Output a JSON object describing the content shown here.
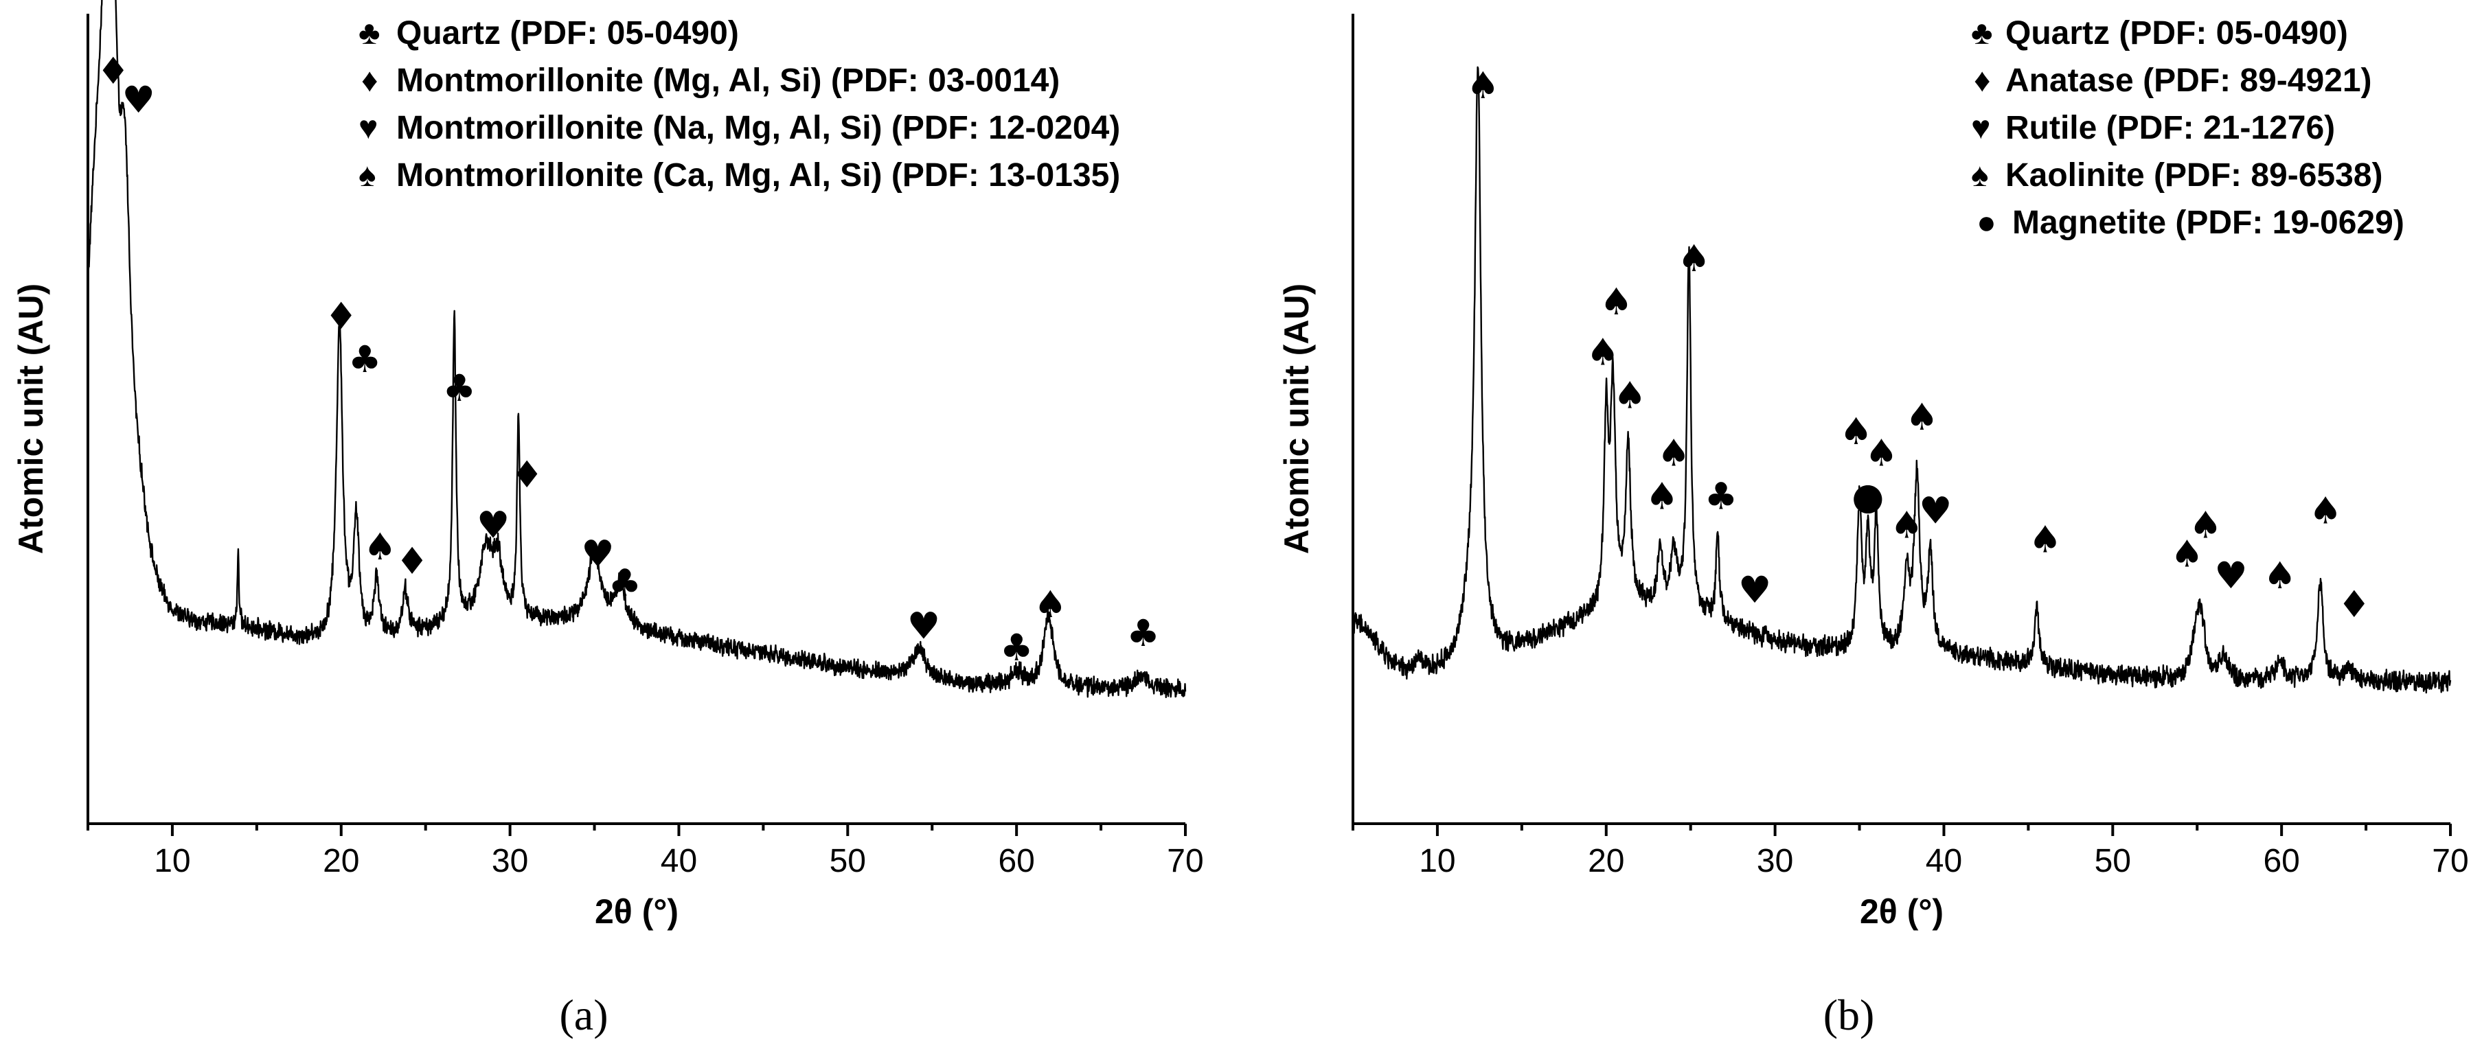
{
  "chart_data": [
    {
      "type": "line",
      "panel_label": "(a)",
      "xlabel": "2θ (°)",
      "ylabel": "Atomic unit (AU)",
      "xlim": [
        5,
        70
      ],
      "xticks": [
        10,
        20,
        30,
        40,
        50,
        60,
        70
      ],
      "y_ticks_shown": false,
      "legend_position": "top",
      "legend": [
        {
          "symbol": "♣",
          "name": "club",
          "label": "Quartz (PDF: 05-0490)"
        },
        {
          "symbol": "♦",
          "name": "diamond",
          "label": "Montmorillonite (Mg, Al, Si) (PDF: 03-0014)"
        },
        {
          "symbol": "♥",
          "name": "heart",
          "label": "Montmorillonite (Na, Mg, Al, Si) (PDF: 12-0204)"
        },
        {
          "symbol": "♠",
          "name": "spade",
          "label": "Montmorillonite (Ca, Mg, Al, Si) (PDF: 13-0135)"
        }
      ],
      "series": [
        {
          "baseline": 12,
          "peaks": [
            [
              6.3,
              85,
              0.45
            ],
            [
              5.5,
              55,
              1.0
            ],
            [
              7.2,
              40,
              0.4
            ],
            [
              8.0,
              10,
              0.8
            ],
            [
              13.9,
              10,
              0.06
            ],
            [
              19.9,
              44,
              0.22
            ],
            [
              20.9,
              16,
              0.2
            ],
            [
              22.1,
              8,
              0.2
            ],
            [
              23.8,
              6,
              0.2
            ],
            [
              26.7,
              42,
              0.12
            ],
            [
              28.6,
              10,
              0.5
            ],
            [
              29.3,
              7,
              0.3
            ],
            [
              30.5,
              28,
              0.1
            ],
            [
              35.0,
              10,
              0.45
            ],
            [
              36.5,
              6,
              0.4
            ],
            [
              54.2,
              4,
              0.5
            ],
            [
              60.0,
              2,
              0.4
            ],
            [
              61.9,
              10,
              0.35
            ],
            [
              67.5,
              2,
              0.4
            ]
          ],
          "broad": [
            [
              13.0,
              6,
              6
            ],
            [
              30.0,
              9,
              12
            ],
            [
              45.0,
              3,
              10
            ]
          ],
          "noise": 1.0,
          "ylim": [
            0,
            100
          ]
        }
      ],
      "markers": [
        {
          "s": "♦",
          "x": 6.5,
          "y": 96
        },
        {
          "s": "♥",
          "x": 8.0,
          "y": 92
        },
        {
          "s": "♦",
          "x": 20.0,
          "y": 62
        },
        {
          "s": "♣",
          "x": 21.4,
          "y": 56
        },
        {
          "s": "♣",
          "x": 27.0,
          "y": 52
        },
        {
          "s": "♦",
          "x": 31.0,
          "y": 40
        },
        {
          "s": "♥",
          "x": 29.0,
          "y": 33
        },
        {
          "s": "♠",
          "x": 22.3,
          "y": 30
        },
        {
          "s": "♦",
          "x": 24.2,
          "y": 28
        },
        {
          "s": "♥",
          "x": 35.2,
          "y": 29
        },
        {
          "s": "♣",
          "x": 36.8,
          "y": 25
        },
        {
          "s": "♥",
          "x": 54.5,
          "y": 19
        },
        {
          "s": "♣",
          "x": 60.0,
          "y": 16
        },
        {
          "s": "♠",
          "x": 62.0,
          "y": 22
        },
        {
          "s": "♣",
          "x": 67.5,
          "y": 18
        }
      ]
    },
    {
      "type": "line",
      "panel_label": "(b)",
      "xlabel": "2θ (°)",
      "ylabel": "Atomic unit (AU)",
      "xlim": [
        5,
        70
      ],
      "xticks": [
        10,
        20,
        30,
        40,
        50,
        60,
        70
      ],
      "y_ticks_shown": false,
      "legend_position": "top-right",
      "legend": [
        {
          "symbol": "♣",
          "name": "club",
          "label": "Quartz (PDF: 05-0490)"
        },
        {
          "symbol": "♦",
          "name": "diamond",
          "label": "Anatase (PDF: 89-4921)"
        },
        {
          "symbol": "♥",
          "name": "heart",
          "label": "Rutile (PDF: 21-1276)"
        },
        {
          "symbol": "♠",
          "name": "spade",
          "label": "Kaolinite (PDF: 89-6538)"
        },
        {
          "symbol": "●",
          "name": "dot",
          "label": "Magnetite (PDF: 19-0629)"
        }
      ],
      "series": [
        {
          "baseline": 13,
          "peaks": [
            [
              12.4,
              78,
              0.22
            ],
            [
              12.0,
              8,
              0.6
            ],
            [
              8.9,
              2,
              0.3
            ],
            [
              20.0,
              26,
              0.15
            ],
            [
              20.4,
              30,
              0.18
            ],
            [
              21.3,
              22,
              0.18
            ],
            [
              23.2,
              8,
              0.18
            ],
            [
              24.0,
              8,
              0.2
            ],
            [
              24.9,
              50,
              0.14
            ],
            [
              26.6,
              12,
              0.12
            ],
            [
              35.0,
              20,
              0.16
            ],
            [
              35.5,
              15,
              0.15
            ],
            [
              36.0,
              18,
              0.15
            ],
            [
              38.4,
              24,
              0.2
            ],
            [
              37.8,
              10,
              0.2
            ],
            [
              39.2,
              13,
              0.18
            ],
            [
              45.5,
              8,
              0.15
            ],
            [
              55.0,
              8,
              0.3
            ],
            [
              55.3,
              5,
              0.25
            ],
            [
              56.6,
              3,
              0.3
            ],
            [
              59.9,
              3,
              0.3
            ],
            [
              62.3,
              14,
              0.2
            ],
            [
              64.0,
              2,
              0.3
            ]
          ],
          "broad": [
            [
              5.0,
              8,
              2.0
            ],
            [
              22.0,
              10,
              8
            ],
            [
              38.0,
              4,
              10
            ]
          ],
          "noise": 1.1,
          "ylim": [
            0,
            100
          ]
        }
      ],
      "markers": [
        {
          "s": "♠",
          "x": 12.7,
          "y": 94
        },
        {
          "s": "♠",
          "x": 20.6,
          "y": 64
        },
        {
          "s": "♠",
          "x": 19.8,
          "y": 57
        },
        {
          "s": "♠",
          "x": 21.4,
          "y": 51
        },
        {
          "s": "♠",
          "x": 25.2,
          "y": 70
        },
        {
          "s": "♠",
          "x": 24.0,
          "y": 43
        },
        {
          "s": "♠",
          "x": 23.3,
          "y": 37
        },
        {
          "s": "♣",
          "x": 26.8,
          "y": 37
        },
        {
          "s": "♥",
          "x": 28.8,
          "y": 24
        },
        {
          "s": "♠",
          "x": 34.8,
          "y": 46
        },
        {
          "s": "♠",
          "x": 36.3,
          "y": 43
        },
        {
          "s": "♠",
          "x": 38.7,
          "y": 48
        },
        {
          "s": "●",
          "x": 35.5,
          "y": 37
        },
        {
          "s": "♠",
          "x": 37.8,
          "y": 33
        },
        {
          "s": "♥",
          "x": 39.5,
          "y": 35
        },
        {
          "s": "♠",
          "x": 46.0,
          "y": 31
        },
        {
          "s": "♠",
          "x": 54.4,
          "y": 29
        },
        {
          "s": "♠",
          "x": 55.5,
          "y": 33
        },
        {
          "s": "♥",
          "x": 57.0,
          "y": 26
        },
        {
          "s": "♠",
          "x": 59.9,
          "y": 26
        },
        {
          "s": "♠",
          "x": 62.6,
          "y": 35
        },
        {
          "s": "♦",
          "x": 64.3,
          "y": 22
        }
      ]
    }
  ]
}
